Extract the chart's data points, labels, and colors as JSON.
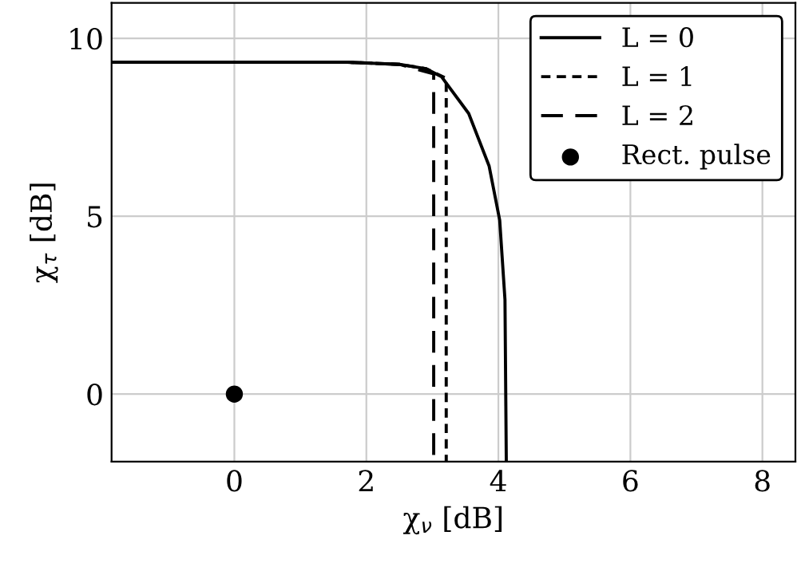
{
  "chart_data": {
    "type": "line",
    "xlabel": "χ$_{ν}$ [dB]",
    "ylabel": "χ$_{τ}$ [dB]",
    "xlim": [
      -1.86,
      8.5
    ],
    "ylim": [
      -1.9,
      11
    ],
    "xticks": [
      0,
      2,
      4,
      6,
      8
    ],
    "yticks": [
      0,
      5,
      10
    ],
    "grid": true,
    "legend": "top right",
    "series": [
      {
        "name": "L = 0",
        "color": "#000000",
        "line_style": "solid",
        "x": [
          -1.86,
          1.71,
          2.5,
          2.9,
          3.14,
          3.55,
          3.86,
          4.02,
          4.1,
          4.12
        ],
        "values": [
          9.33,
          9.33,
          9.27,
          9.15,
          8.92,
          7.89,
          6.41,
          4.89,
          2.65,
          -1.9
        ]
      },
      {
        "name": "L = 1",
        "color": "#000000",
        "line_style": "dotted",
        "x": [
          -1.86,
          1.71,
          2.5,
          2.9,
          3.21,
          3.21
        ],
        "values": [
          9.33,
          9.33,
          9.27,
          9.15,
          8.88,
          -1.9
        ]
      },
      {
        "name": "L = 2",
        "color": "#000000",
        "line_style": "dashed",
        "x": [
          -1.86,
          1.71,
          2.5,
          3.02,
          3.02
        ],
        "values": [
          9.33,
          9.33,
          9.27,
          9.0,
          -1.9
        ]
      },
      {
        "name": "Rect. pulse",
        "type": "scatter",
        "color": "#000000",
        "marker": "circle",
        "x": [
          0
        ],
        "values": [
          0
        ]
      }
    ]
  }
}
